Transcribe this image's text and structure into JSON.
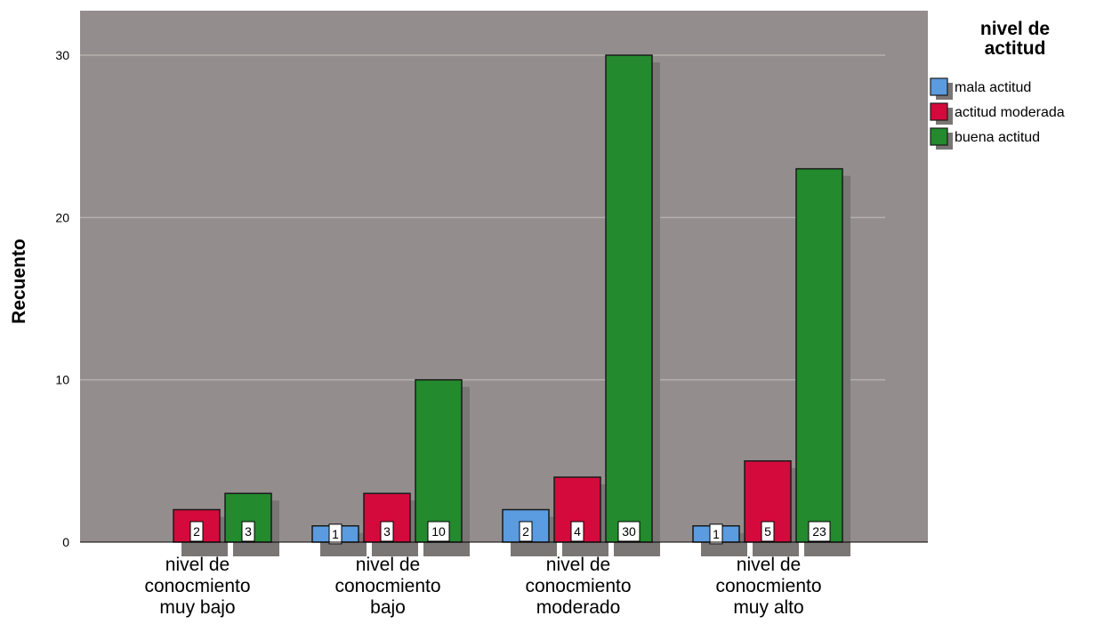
{
  "chart_data": {
    "type": "bar",
    "categories": [
      [
        "nivel de",
        "conocmiento",
        "muy bajo"
      ],
      [
        "nivel de",
        "conocmiento",
        "bajo"
      ],
      [
        "nivel de",
        "conocmiento",
        "moderado"
      ],
      [
        "nivel de",
        "conocmiento",
        "muy alto"
      ]
    ],
    "series": [
      {
        "name": "mala actitud",
        "color": "#5B9BDF",
        "values": [
          null,
          1,
          2,
          1
        ]
      },
      {
        "name": "actitud moderada",
        "color": "#D40A3C",
        "values": [
          2,
          3,
          4,
          5
        ]
      },
      {
        "name": "buena actitud",
        "color": "#238A2E",
        "values": [
          3,
          10,
          30,
          23
        ]
      }
    ],
    "ylabel": "Recuento",
    "ylim": [
      0,
      30
    ],
    "yticks": [
      0,
      10,
      20,
      30
    ],
    "legend": {
      "title": [
        "nivel de",
        "actitud"
      ],
      "position": "right"
    },
    "grid": true,
    "plot_background": "#938E8D",
    "data_labels": true
  }
}
